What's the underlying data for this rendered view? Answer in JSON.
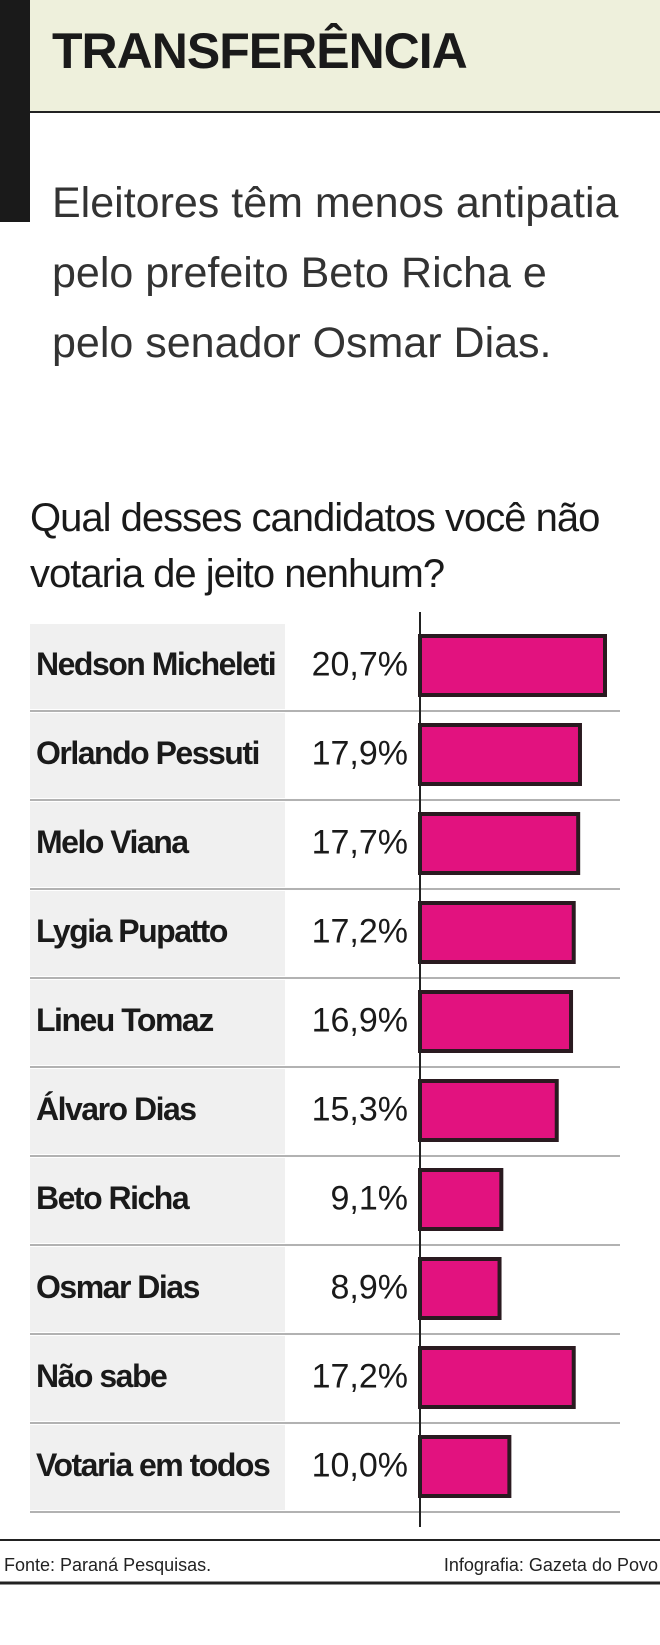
{
  "chart_data": {
    "type": "bar",
    "title": "TRANSFERÊNCIA",
    "subtitle": "Eleitores têm menos antipatia pelo prefeito Beto Richa e pelo senador Osmar Dias.",
    "question": "Qual desses candidatos você não votaria de jeito nenhum?",
    "categories": [
      "Nedson Micheleti",
      "Orlando Pessuti",
      "Melo Viana",
      "Lygia Pupatto",
      "Lineu Tomaz",
      "Álvaro Dias",
      "Beto Richa",
      "Osmar Dias",
      "Não sabe",
      "Votaria em todos"
    ],
    "values": [
      20.7,
      17.9,
      17.7,
      17.2,
      16.9,
      15.3,
      9.1,
      8.9,
      17.2,
      10.0
    ],
    "value_labels": [
      "20,7%",
      "17,9%",
      "17,7%",
      "17,2%",
      "16,9%",
      "15,3%",
      "9,1%",
      "8,9%",
      "17,2%",
      "10,0%"
    ],
    "color": "#e2127f",
    "source": "Fonte: Paraná Pesquisas.",
    "credit": "Infografia: Gazeta do Povo"
  }
}
